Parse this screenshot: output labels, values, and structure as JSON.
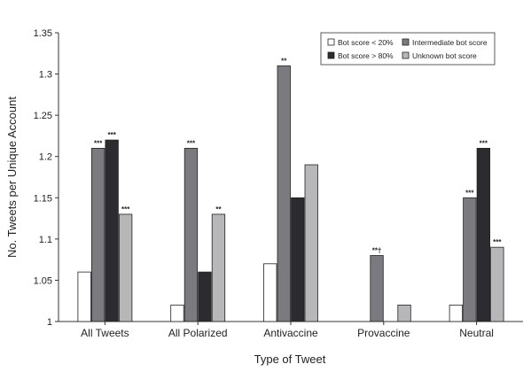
{
  "chart_data": {
    "type": "bar",
    "xlabel": "Type of Tweet",
    "ylabel": "No. Tweets per Unique Account",
    "ylim": [
      1,
      1.35
    ],
    "yticks": [
      "1",
      "1.05",
      "1.1",
      "1.15",
      "1.2",
      "1.25",
      "1.3",
      "1.35"
    ],
    "categories": [
      "All Tweets",
      "All Polarized",
      "Antivaccine",
      "Provaccine",
      "Neutral"
    ],
    "series": [
      {
        "name": "Bot score < 20%",
        "color": "#ffffff",
        "values": [
          1.06,
          1.02,
          1.07,
          null,
          1.02
        ],
        "significance": [
          "",
          "",
          "",
          "",
          ""
        ]
      },
      {
        "name": "Intermediate bot score",
        "color": "#7b7b7f",
        "values": [
          1.21,
          1.21,
          1.31,
          1.08,
          1.15
        ],
        "significance": [
          "***",
          "***",
          "**",
          "**†",
          "***"
        ]
      },
      {
        "name": "Bot score > 80%",
        "color": "#2b2b30",
        "values": [
          1.22,
          1.06,
          1.15,
          null,
          1.21
        ],
        "significance": [
          "***",
          "",
          "",
          "",
          "***"
        ]
      },
      {
        "name": "Unknown bot score",
        "color": "#b7b7b9",
        "values": [
          1.13,
          1.13,
          1.19,
          1.02,
          1.09
        ],
        "significance": [
          "***",
          "**",
          "",
          "",
          "***"
        ]
      }
    ],
    "legend": {
      "placement": "top-right",
      "columns": 2
    },
    "grid": false
  }
}
